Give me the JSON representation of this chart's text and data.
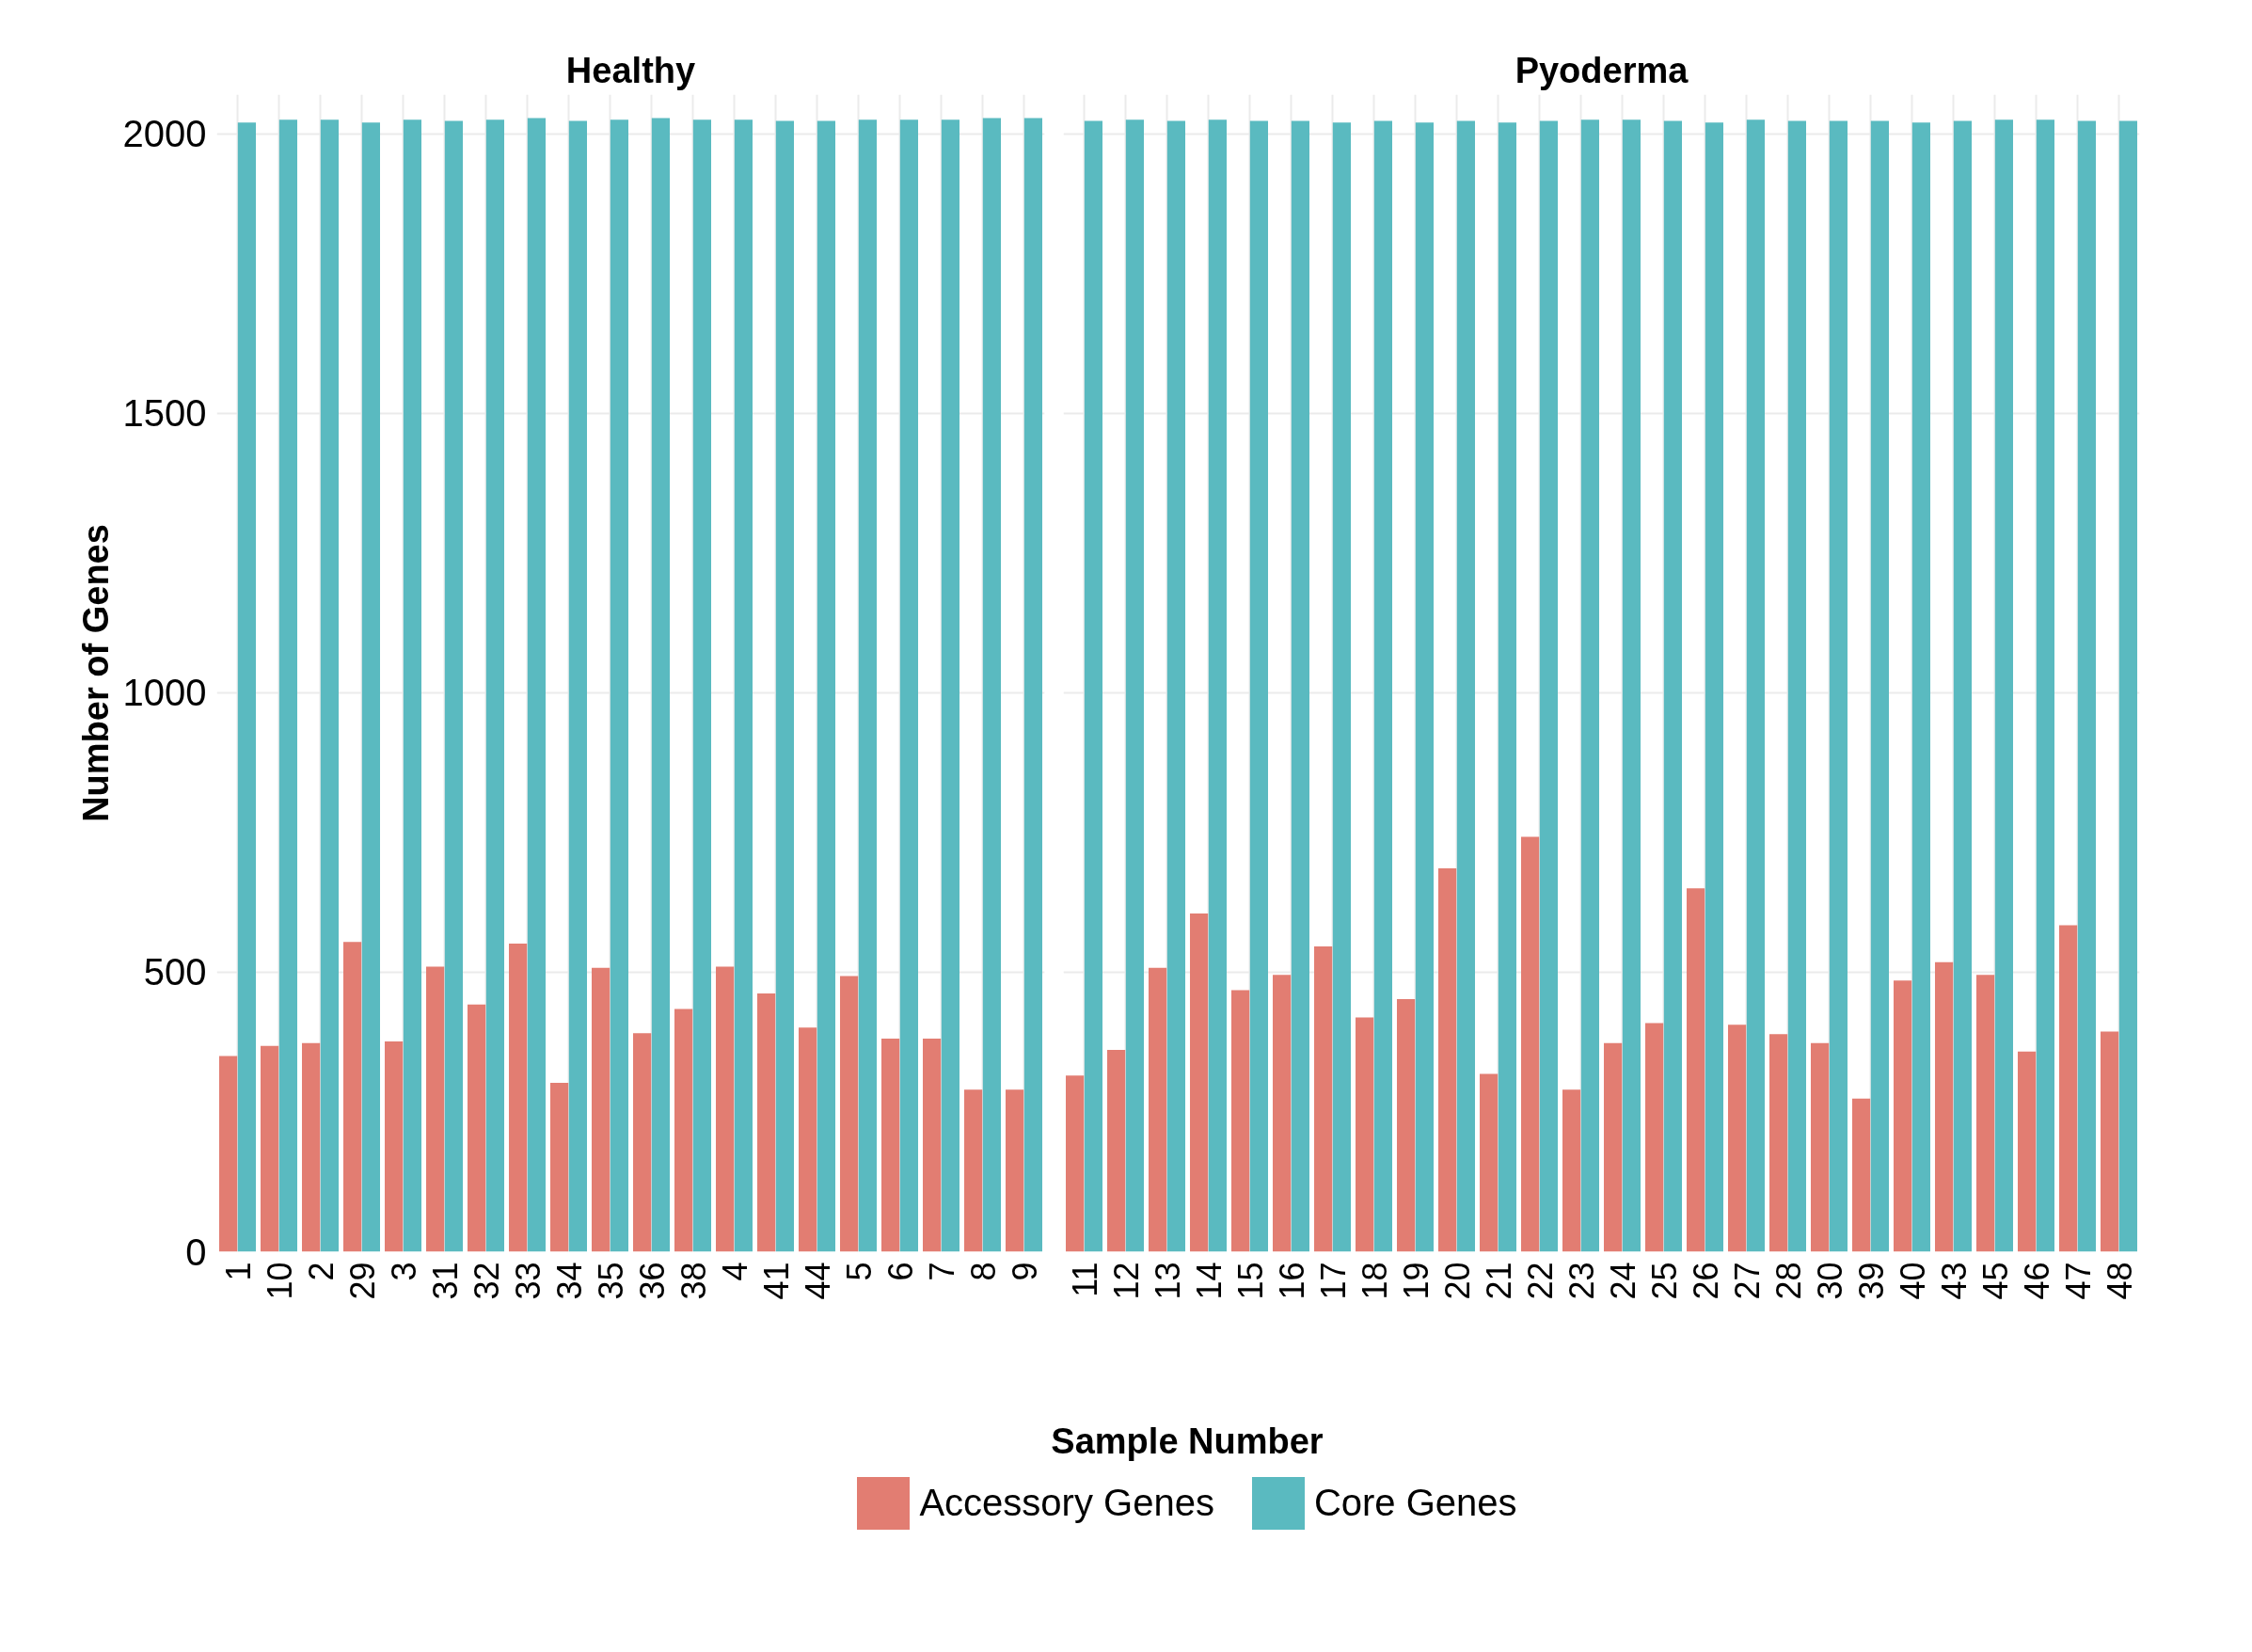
{
  "chart_data": [
    {
      "type": "bar",
      "title": "Healthy",
      "xlabel": "Sample Number",
      "ylabel": "Number of Genes",
      "categories": [
        "1",
        "10",
        "2",
        "29",
        "3",
        "31",
        "32",
        "33",
        "34",
        "35",
        "36",
        "38",
        "4",
        "41",
        "44",
        "5",
        "6",
        "7",
        "8",
        "9"
      ],
      "series": [
        {
          "name": "Accessory Genes",
          "color": "#e27d72",
          "values": [
            350,
            368,
            373,
            554,
            376,
            510,
            442,
            551,
            302,
            508,
            391,
            434,
            510,
            462,
            401,
            493,
            381,
            381,
            290,
            290
          ]
        },
        {
          "name": "Core Genes",
          "color": "#5abac0",
          "values": [
            2020,
            2025,
            2025,
            2020,
            2025,
            2023,
            2025,
            2028,
            2023,
            2025,
            2028,
            2025,
            2025,
            2023,
            2023,
            2025,
            2025,
            2025,
            2028,
            2028
          ]
        }
      ],
      "ylim": [
        0,
        2070
      ],
      "yticks": [
        0,
        500,
        1000,
        1500,
        2000
      ],
      "grid": true,
      "legend": "bottom"
    },
    {
      "type": "bar",
      "title": "Pyoderma",
      "categories": [
        "11",
        "12",
        "13",
        "14",
        "15",
        "16",
        "17",
        "18",
        "19",
        "20",
        "21",
        "22",
        "23",
        "24",
        "25",
        "26",
        "27",
        "28",
        "30",
        "39",
        "40",
        "43",
        "45",
        "46",
        "47",
        "48"
      ],
      "series": [
        {
          "color": "#e27d72",
          "values": [
            315,
            361,
            508,
            605,
            468,
            495,
            546,
            419,
            452,
            686,
            318,
            742,
            290,
            373,
            409,
            650,
            406,
            389,
            373,
            274,
            485,
            518,
            495,
            358,
            584,
            394
          ]
        },
        {
          "color": "#5abac0",
          "values": [
            2023,
            2025,
            2023,
            2025,
            2023,
            2023,
            2020,
            2023,
            2020,
            2023,
            2020,
            2023,
            2025,
            2025,
            2023,
            2020,
            2025,
            2023,
            2023,
            2023,
            2020,
            2023,
            2025,
            2025,
            2023,
            2023
          ]
        }
      ],
      "ylim": [
        0,
        2070
      ],
      "yticks": [
        0,
        500,
        1000,
        1500,
        2000
      ],
      "grid": true,
      "tick_labels": "x"
    }
  ]
}
